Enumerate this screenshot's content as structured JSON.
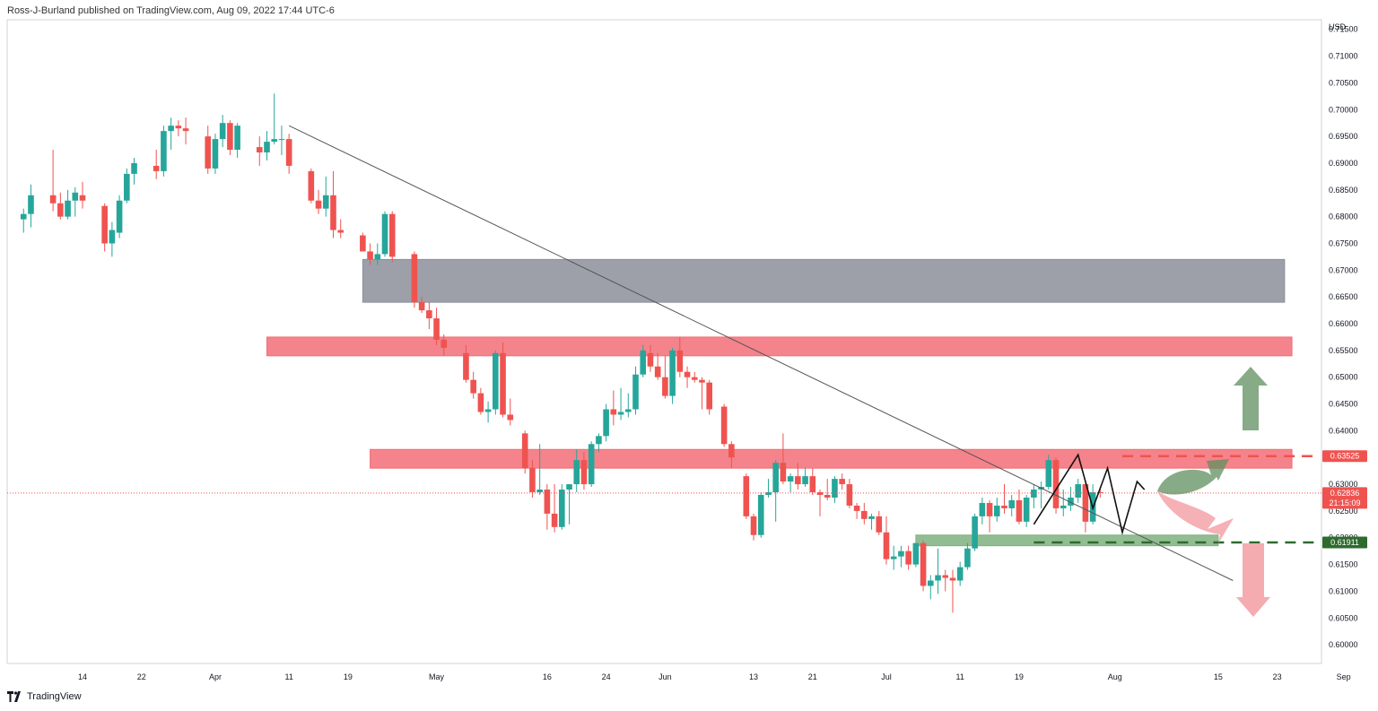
{
  "header": {
    "published": "Ross-J-Burland published on TradingView.com, Aug 09, 2022 17:44 UTC-6"
  },
  "footer": {
    "brand": "TradingView",
    "logo_icon": "tradingview-logo-icon"
  },
  "colors": {
    "up": "#26a69a",
    "down": "#ef5350",
    "grey_zone": "#8c8f9a",
    "red_zone": "#f26d77",
    "green_zone": "#7fb27f",
    "resistance_line": "#ef5350",
    "support_line": "#2e6b2e"
  },
  "chart_data": {
    "type": "candlestick",
    "currency": "USD",
    "ylim": [
      0.5965,
      0.7168
    ],
    "price_ticks": [
      "0.71500",
      "0.71000",
      "0.70500",
      "0.70000",
      "0.69500",
      "0.69000",
      "0.68500",
      "0.68000",
      "0.67500",
      "0.67000",
      "0.66500",
      "0.66000",
      "0.65500",
      "0.65000",
      "0.64500",
      "0.64000",
      "0.63500",
      "0.63000",
      "0.62500",
      "0.62000",
      "0.61500",
      "0.61000",
      "0.60500",
      "0.60000"
    ],
    "time_ticks": [
      {
        "label": "14",
        "day": 0
      },
      {
        "label": "22",
        "day": 8
      },
      {
        "label": "Apr",
        "day": 18
      },
      {
        "label": "11",
        "day": 28
      },
      {
        "label": "19",
        "day": 36
      },
      {
        "label": "May",
        "day": 48
      },
      {
        "label": "16",
        "day": 63
      },
      {
        "label": "24",
        "day": 71
      },
      {
        "label": "Jun",
        "day": 79
      },
      {
        "label": "13",
        "day": 91
      },
      {
        "label": "21",
        "day": 99
      },
      {
        "label": "Jul",
        "day": 109
      },
      {
        "label": "11",
        "day": 119
      },
      {
        "label": "19",
        "day": 127
      },
      {
        "label": "Aug",
        "day": 140
      },
      {
        "label": "15",
        "day": 154
      },
      {
        "label": "23",
        "day": 162
      },
      {
        "label": "Sep",
        "day": 171
      }
    ],
    "candles": [
      {
        "d": -8,
        "o": 0.6795,
        "h": 0.6815,
        "l": 0.677,
        "c": 0.6805
      },
      {
        "d": -7,
        "o": 0.6805,
        "h": 0.686,
        "l": 0.678,
        "c": 0.684
      },
      {
        "d": -4,
        "o": 0.684,
        "h": 0.6925,
        "l": 0.681,
        "c": 0.6825
      },
      {
        "d": -3,
        "o": 0.6825,
        "h": 0.6845,
        "l": 0.6795,
        "c": 0.68
      },
      {
        "d": -2,
        "o": 0.68,
        "h": 0.685,
        "l": 0.6795,
        "c": 0.683
      },
      {
        "d": -1,
        "o": 0.683,
        "h": 0.6855,
        "l": 0.68,
        "c": 0.6845
      },
      {
        "d": 0,
        "o": 0.684,
        "h": 0.6865,
        "l": 0.6815,
        "c": 0.683
      },
      {
        "d": 3,
        "o": 0.682,
        "h": 0.6825,
        "l": 0.6735,
        "c": 0.675
      },
      {
        "d": 4,
        "o": 0.675,
        "h": 0.679,
        "l": 0.6725,
        "c": 0.6775
      },
      {
        "d": 5,
        "o": 0.677,
        "h": 0.684,
        "l": 0.676,
        "c": 0.683
      },
      {
        "d": 6,
        "o": 0.683,
        "h": 0.689,
        "l": 0.6825,
        "c": 0.688
      },
      {
        "d": 7,
        "o": 0.688,
        "h": 0.691,
        "l": 0.686,
        "c": 0.69
      },
      {
        "d": 10,
        "o": 0.6895,
        "h": 0.6925,
        "l": 0.687,
        "c": 0.6885
      },
      {
        "d": 11,
        "o": 0.6885,
        "h": 0.697,
        "l": 0.6875,
        "c": 0.696
      },
      {
        "d": 12,
        "o": 0.696,
        "h": 0.6985,
        "l": 0.6925,
        "c": 0.697
      },
      {
        "d": 13,
        "o": 0.697,
        "h": 0.698,
        "l": 0.695,
        "c": 0.6965
      },
      {
        "d": 14,
        "o": 0.6965,
        "h": 0.6985,
        "l": 0.6935,
        "c": 0.696
      },
      {
        "d": 17,
        "o": 0.695,
        "h": 0.697,
        "l": 0.688,
        "c": 0.689
      },
      {
        "d": 18,
        "o": 0.689,
        "h": 0.6955,
        "l": 0.688,
        "c": 0.6945
      },
      {
        "d": 19,
        "o": 0.6945,
        "h": 0.699,
        "l": 0.693,
        "c": 0.6975
      },
      {
        "d": 20,
        "o": 0.6975,
        "h": 0.698,
        "l": 0.6915,
        "c": 0.6925
      },
      {
        "d": 21,
        "o": 0.6925,
        "h": 0.6975,
        "l": 0.691,
        "c": 0.697
      },
      {
        "d": 24,
        "o": 0.693,
        "h": 0.695,
        "l": 0.6895,
        "c": 0.692
      },
      {
        "d": 25,
        "o": 0.692,
        "h": 0.696,
        "l": 0.6905,
        "c": 0.694
      },
      {
        "d": 26,
        "o": 0.694,
        "h": 0.703,
        "l": 0.6935,
        "c": 0.6945
      },
      {
        "d": 27,
        "o": 0.6945,
        "h": 0.697,
        "l": 0.6915,
        "c": 0.6945
      },
      {
        "d": 28,
        "o": 0.6945,
        "h": 0.6955,
        "l": 0.688,
        "c": 0.6895
      },
      {
        "d": 31,
        "o": 0.6885,
        "h": 0.689,
        "l": 0.6825,
        "c": 0.683
      },
      {
        "d": 32,
        "o": 0.683,
        "h": 0.685,
        "l": 0.6805,
        "c": 0.6815
      },
      {
        "d": 33,
        "o": 0.6815,
        "h": 0.6875,
        "l": 0.68,
        "c": 0.684
      },
      {
        "d": 34,
        "o": 0.684,
        "h": 0.6885,
        "l": 0.676,
        "c": 0.6775
      },
      {
        "d": 35,
        "o": 0.6775,
        "h": 0.6795,
        "l": 0.676,
        "c": 0.677
      },
      {
        "d": 38,
        "o": 0.6765,
        "h": 0.677,
        "l": 0.6735,
        "c": 0.6735
      },
      {
        "d": 39,
        "o": 0.6735,
        "h": 0.675,
        "l": 0.671,
        "c": 0.672
      },
      {
        "d": 40,
        "o": 0.672,
        "h": 0.675,
        "l": 0.671,
        "c": 0.673
      },
      {
        "d": 41,
        "o": 0.673,
        "h": 0.681,
        "l": 0.6725,
        "c": 0.6805
      },
      {
        "d": 42,
        "o": 0.6805,
        "h": 0.681,
        "l": 0.6715,
        "c": 0.6725
      },
      {
        "d": 45,
        "o": 0.673,
        "h": 0.6735,
        "l": 0.663,
        "c": 0.664
      },
      {
        "d": 46,
        "o": 0.664,
        "h": 0.665,
        "l": 0.662,
        "c": 0.6625
      },
      {
        "d": 47,
        "o": 0.6625,
        "h": 0.664,
        "l": 0.659,
        "c": 0.661
      },
      {
        "d": 48,
        "o": 0.661,
        "h": 0.663,
        "l": 0.656,
        "c": 0.657
      },
      {
        "d": 49,
        "o": 0.657,
        "h": 0.658,
        "l": 0.654,
        "c": 0.6555
      },
      {
        "d": 52,
        "o": 0.6545,
        "h": 0.656,
        "l": 0.649,
        "c": 0.6495
      },
      {
        "d": 53,
        "o": 0.6495,
        "h": 0.651,
        "l": 0.646,
        "c": 0.647
      },
      {
        "d": 54,
        "o": 0.647,
        "h": 0.648,
        "l": 0.643,
        "c": 0.6435
      },
      {
        "d": 55,
        "o": 0.6435,
        "h": 0.6455,
        "l": 0.6415,
        "c": 0.644
      },
      {
        "d": 56,
        "o": 0.644,
        "h": 0.655,
        "l": 0.643,
        "c": 0.6545
      },
      {
        "d": 57,
        "o": 0.6545,
        "h": 0.6565,
        "l": 0.6425,
        "c": 0.643
      },
      {
        "d": 58,
        "o": 0.643,
        "h": 0.646,
        "l": 0.641,
        "c": 0.642
      },
      {
        "d": 60,
        "o": 0.6395,
        "h": 0.64,
        "l": 0.632,
        "c": 0.633
      },
      {
        "d": 61,
        "o": 0.633,
        "h": 0.6345,
        "l": 0.6275,
        "c": 0.6285
      },
      {
        "d": 62,
        "o": 0.6285,
        "h": 0.6375,
        "l": 0.628,
        "c": 0.629
      },
      {
        "d": 63,
        "o": 0.629,
        "h": 0.63,
        "l": 0.6215,
        "c": 0.6245
      },
      {
        "d": 64,
        "o": 0.6245,
        "h": 0.63,
        "l": 0.621,
        "c": 0.622
      },
      {
        "d": 65,
        "o": 0.622,
        "h": 0.63,
        "l": 0.6215,
        "c": 0.629
      },
      {
        "d": 66,
        "o": 0.629,
        "h": 0.63,
        "l": 0.6225,
        "c": 0.63
      },
      {
        "d": 67,
        "o": 0.63,
        "h": 0.6365,
        "l": 0.6285,
        "c": 0.6345
      },
      {
        "d": 68,
        "o": 0.6345,
        "h": 0.636,
        "l": 0.629,
        "c": 0.63
      },
      {
        "d": 69,
        "o": 0.63,
        "h": 0.638,
        "l": 0.6295,
        "c": 0.6375
      },
      {
        "d": 70,
        "o": 0.6375,
        "h": 0.6395,
        "l": 0.636,
        "c": 0.639
      },
      {
        "d": 71,
        "o": 0.639,
        "h": 0.645,
        "l": 0.638,
        "c": 0.644
      },
      {
        "d": 72,
        "o": 0.644,
        "h": 0.6475,
        "l": 0.641,
        "c": 0.643
      },
      {
        "d": 73,
        "o": 0.643,
        "h": 0.648,
        "l": 0.642,
        "c": 0.6435
      },
      {
        "d": 74,
        "o": 0.6435,
        "h": 0.647,
        "l": 0.6425,
        "c": 0.644
      },
      {
        "d": 75,
        "o": 0.644,
        "h": 0.652,
        "l": 0.643,
        "c": 0.6505
      },
      {
        "d": 76,
        "o": 0.6505,
        "h": 0.656,
        "l": 0.65,
        "c": 0.655
      },
      {
        "d": 77,
        "o": 0.6545,
        "h": 0.656,
        "l": 0.651,
        "c": 0.652
      },
      {
        "d": 78,
        "o": 0.652,
        "h": 0.6545,
        "l": 0.6495,
        "c": 0.65
      },
      {
        "d": 79,
        "o": 0.65,
        "h": 0.654,
        "l": 0.646,
        "c": 0.6465
      },
      {
        "d": 80,
        "o": 0.6465,
        "h": 0.6555,
        "l": 0.645,
        "c": 0.655
      },
      {
        "d": 81,
        "o": 0.655,
        "h": 0.6575,
        "l": 0.65,
        "c": 0.651
      },
      {
        "d": 82,
        "o": 0.651,
        "h": 0.652,
        "l": 0.648,
        "c": 0.65
      },
      {
        "d": 83,
        "o": 0.65,
        "h": 0.651,
        "l": 0.649,
        "c": 0.6495
      },
      {
        "d": 84,
        "o": 0.6495,
        "h": 0.65,
        "l": 0.644,
        "c": 0.649
      },
      {
        "d": 85,
        "o": 0.649,
        "h": 0.6495,
        "l": 0.643,
        "c": 0.644
      },
      {
        "d": 87,
        "o": 0.6445,
        "h": 0.645,
        "l": 0.637,
        "c": 0.6375
      },
      {
        "d": 88,
        "o": 0.6375,
        "h": 0.638,
        "l": 0.633,
        "c": 0.635
      },
      {
        "d": 90,
        "o": 0.6315,
        "h": 0.632,
        "l": 0.6235,
        "c": 0.624
      },
      {
        "d": 91,
        "o": 0.624,
        "h": 0.6245,
        "l": 0.6195,
        "c": 0.6205
      },
      {
        "d": 92,
        "o": 0.6205,
        "h": 0.6285,
        "l": 0.62,
        "c": 0.628
      },
      {
        "d": 93,
        "o": 0.628,
        "h": 0.631,
        "l": 0.6275,
        "c": 0.6285
      },
      {
        "d": 94,
        "o": 0.6285,
        "h": 0.6345,
        "l": 0.623,
        "c": 0.634
      },
      {
        "d": 95,
        "o": 0.634,
        "h": 0.6395,
        "l": 0.63,
        "c": 0.6305
      },
      {
        "d": 96,
        "o": 0.6305,
        "h": 0.632,
        "l": 0.6285,
        "c": 0.6315
      },
      {
        "d": 97,
        "o": 0.6315,
        "h": 0.634,
        "l": 0.629,
        "c": 0.63
      },
      {
        "d": 98,
        "o": 0.63,
        "h": 0.633,
        "l": 0.6295,
        "c": 0.6315
      },
      {
        "d": 99,
        "o": 0.6315,
        "h": 0.633,
        "l": 0.628,
        "c": 0.6285
      },
      {
        "d": 100,
        "o": 0.6285,
        "h": 0.629,
        "l": 0.624,
        "c": 0.628
      },
      {
        "d": 101,
        "o": 0.628,
        "h": 0.631,
        "l": 0.627,
        "c": 0.6275
      },
      {
        "d": 102,
        "o": 0.6275,
        "h": 0.6315,
        "l": 0.6265,
        "c": 0.631
      },
      {
        "d": 103,
        "o": 0.631,
        "h": 0.632,
        "l": 0.629,
        "c": 0.63
      },
      {
        "d": 104,
        "o": 0.63,
        "h": 0.631,
        "l": 0.6255,
        "c": 0.626
      },
      {
        "d": 105,
        "o": 0.626,
        "h": 0.6265,
        "l": 0.6235,
        "c": 0.625
      },
      {
        "d": 106,
        "o": 0.625,
        "h": 0.6265,
        "l": 0.6225,
        "c": 0.6235
      },
      {
        "d": 107,
        "o": 0.6235,
        "h": 0.6245,
        "l": 0.6215,
        "c": 0.624
      },
      {
        "d": 108,
        "o": 0.624,
        "h": 0.625,
        "l": 0.6205,
        "c": 0.621
      },
      {
        "d": 109,
        "o": 0.621,
        "h": 0.624,
        "l": 0.615,
        "c": 0.616
      },
      {
        "d": 110,
        "o": 0.616,
        "h": 0.6185,
        "l": 0.614,
        "c": 0.6165
      },
      {
        "d": 111,
        "o": 0.6165,
        "h": 0.6185,
        "l": 0.6145,
        "c": 0.6175
      },
      {
        "d": 112,
        "o": 0.6175,
        "h": 0.6185,
        "l": 0.614,
        "c": 0.615
      },
      {
        "d": 113,
        "o": 0.615,
        "h": 0.619,
        "l": 0.6145,
        "c": 0.619
      },
      {
        "d": 114,
        "o": 0.619,
        "h": 0.6195,
        "l": 0.61,
        "c": 0.611
      },
      {
        "d": 115,
        "o": 0.611,
        "h": 0.613,
        "l": 0.6085,
        "c": 0.612
      },
      {
        "d": 116,
        "o": 0.612,
        "h": 0.618,
        "l": 0.6095,
        "c": 0.613
      },
      {
        "d": 117,
        "o": 0.613,
        "h": 0.614,
        "l": 0.61,
        "c": 0.6125
      },
      {
        "d": 118,
        "o": 0.6125,
        "h": 0.614,
        "l": 0.606,
        "c": 0.612
      },
      {
        "d": 119,
        "o": 0.612,
        "h": 0.6155,
        "l": 0.611,
        "c": 0.6145
      },
      {
        "d": 120,
        "o": 0.6145,
        "h": 0.619,
        "l": 0.614,
        "c": 0.618
      },
      {
        "d": 121,
        "o": 0.618,
        "h": 0.6245,
        "l": 0.6175,
        "c": 0.624
      },
      {
        "d": 122,
        "o": 0.624,
        "h": 0.6275,
        "l": 0.6225,
        "c": 0.6265
      },
      {
        "d": 123,
        "o": 0.6265,
        "h": 0.627,
        "l": 0.621,
        "c": 0.624
      },
      {
        "d": 124,
        "o": 0.624,
        "h": 0.6275,
        "l": 0.623,
        "c": 0.626
      },
      {
        "d": 125,
        "o": 0.626,
        "h": 0.63,
        "l": 0.6245,
        "c": 0.6255
      },
      {
        "d": 126,
        "o": 0.6255,
        "h": 0.628,
        "l": 0.624,
        "c": 0.627
      },
      {
        "d": 127,
        "o": 0.627,
        "h": 0.629,
        "l": 0.6225,
        "c": 0.623
      },
      {
        "d": 128,
        "o": 0.623,
        "h": 0.628,
        "l": 0.622,
        "c": 0.6275
      },
      {
        "d": 129,
        "o": 0.6275,
        "h": 0.63,
        "l": 0.6255,
        "c": 0.629
      },
      {
        "d": 130,
        "o": 0.629,
        "h": 0.6305,
        "l": 0.6255,
        "c": 0.6295
      },
      {
        "d": 131,
        "o": 0.6295,
        "h": 0.6355,
        "l": 0.629,
        "c": 0.6345
      },
      {
        "d": 132,
        "o": 0.6345,
        "h": 0.635,
        "l": 0.6245,
        "c": 0.6255
      },
      {
        "d": 133,
        "o": 0.6255,
        "h": 0.629,
        "l": 0.624,
        "c": 0.626
      },
      {
        "d": 134,
        "o": 0.626,
        "h": 0.6295,
        "l": 0.625,
        "c": 0.6275
      },
      {
        "d": 135,
        "o": 0.6275,
        "h": 0.631,
        "l": 0.6265,
        "c": 0.63
      },
      {
        "d": 136,
        "o": 0.63,
        "h": 0.6305,
        "l": 0.621,
        "c": 0.623
      },
      {
        "d": 137,
        "o": 0.623,
        "h": 0.63,
        "l": 0.6225,
        "c": 0.6285
      },
      {
        "d": 138,
        "o": 0.6285,
        "h": 0.6295,
        "l": 0.6275,
        "c": 0.6284
      }
    ],
    "zones": [
      {
        "name": "grey-supply-zone",
        "from_day": 38,
        "to_day": 163,
        "low": 0.664,
        "high": 0.672,
        "color": "#8c8f9a"
      },
      {
        "name": "red-resistance-zone-upper",
        "from_day": 25,
        "to_day": 164,
        "low": 0.654,
        "high": 0.6575,
        "color": "#f26d77"
      },
      {
        "name": "red-resistance-zone-lower",
        "from_day": 39,
        "to_day": 164,
        "low": 0.633,
        "high": 0.6365,
        "color": "#f26d77"
      },
      {
        "name": "green-support-zone",
        "from_day": 113,
        "to_day": 154,
        "low": 0.6185,
        "high": 0.6205,
        "color": "#7fb27f"
      }
    ],
    "trendline": {
      "from": {
        "day": 28,
        "price": 0.697
      },
      "to": {
        "day": 156,
        "price": 0.612
      }
    },
    "levels": [
      {
        "name": "resistance-level",
        "price": 0.63525,
        "from_day": 141,
        "color": "#ef5350"
      },
      {
        "name": "support-level",
        "price": 0.61911,
        "from_day": 129,
        "color": "#2e6b2e"
      }
    ],
    "pattern": [
      {
        "day": 129,
        "price": 0.6225
      },
      {
        "day": 135,
        "price": 0.6355
      },
      {
        "day": 137,
        "price": 0.6255
      },
      {
        "day": 139,
        "price": 0.633
      },
      {
        "day": 141,
        "price": 0.621
      },
      {
        "day": 143,
        "price": 0.6305
      },
      {
        "day": 144,
        "price": 0.629
      }
    ],
    "current_price": 0.62836,
    "price_labels": {
      "current": "0.62836",
      "countdown": "21:15:09",
      "resistance": "0.63525",
      "support": "0.61911"
    },
    "projections": [
      {
        "name": "up-arrow",
        "direction": "up"
      },
      {
        "name": "down-arrow",
        "direction": "down"
      }
    ]
  }
}
